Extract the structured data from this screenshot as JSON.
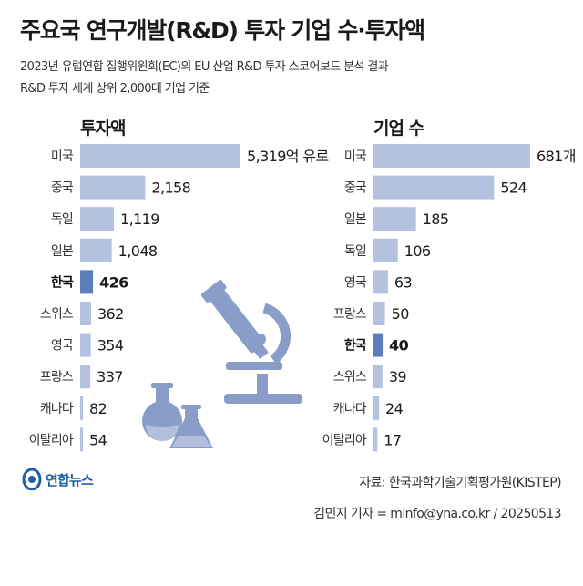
{
  "header": {
    "title": "주요국 연구개발(R&D) 투자 기업 수·투자액",
    "subtitle_line1": "2023년 유럽연합 집행위원회(EC)의 EU 산업 R&D 투자 스코어보드 분석 결과",
    "subtitle_line2": "R&D 투자 세계 상위 2,000대 기업 기준"
  },
  "colors": {
    "bar": "#b3c3df",
    "highlight": "#5b7fbd",
    "icon": "#8a9dc9",
    "logo": "#1d5fa8"
  },
  "chart_data": [
    {
      "type": "bar",
      "orientation": "horizontal",
      "title": "투자액",
      "categories": [
        "미국",
        "중국",
        "독일",
        "일본",
        "한국",
        "스위스",
        "영국",
        "프랑스",
        "캐나다",
        "이탈리아"
      ],
      "values": [
        5319,
        2158,
        1119,
        1048,
        426,
        362,
        354,
        337,
        82,
        54
      ],
      "value_labels": [
        "5,319억 유로",
        "2,158",
        "1,119",
        "1,048",
        "426",
        "362",
        "354",
        "337",
        "82",
        "54"
      ],
      "highlight": "한국",
      "xlim": [
        0,
        5319
      ]
    },
    {
      "type": "bar",
      "orientation": "horizontal",
      "title": "기업 수",
      "categories": [
        "미국",
        "중국",
        "일본",
        "독일",
        "영국",
        "프랑스",
        "한국",
        "스위스",
        "캐나다",
        "이탈리아"
      ],
      "values": [
        681,
        524,
        185,
        106,
        63,
        50,
        40,
        39,
        24,
        17
      ],
      "value_labels": [
        "681개",
        "524",
        "185",
        "106",
        "63",
        "50",
        "40",
        "39",
        "24",
        "17"
      ],
      "highlight": "한국",
      "xlim": [
        0,
        681
      ]
    }
  ],
  "footer": {
    "logo_text": "연합뉴스",
    "source": "자료: 한국과학기술기획평가원(KISTEP)",
    "byline": "김민지 기자 = minfo@yna.co.kr / 20250513"
  },
  "icons": {
    "decoration": "microscope-and-flasks-icon",
    "logo": "yonhap-logo-icon"
  }
}
